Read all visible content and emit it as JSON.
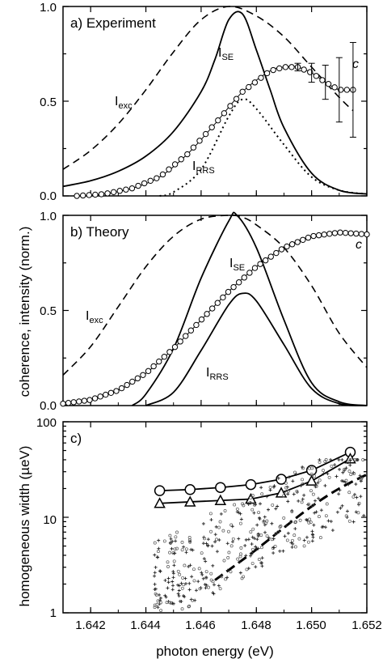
{
  "figure": {
    "ylabel_shared": "coherence,  intensity (norm.)",
    "xlabel": "photon energy (eV)"
  },
  "chart_data": [
    {
      "type": "line",
      "panel": "a) Experiment",
      "xlim": [
        1.641,
        1.652
      ],
      "ylim": [
        0,
        1.0
      ],
      "yticks": [
        "0.0",
        "0.5",
        "1.0"
      ],
      "series": [
        {
          "key": "exc",
          "label": "I",
          "sub": "exc",
          "style": "dashed",
          "x": [
            1.641,
            1.642,
            1.643,
            1.644,
            1.645,
            1.646,
            1.647,
            1.648,
            1.649,
            1.65,
            1.651,
            1.6515
          ],
          "y": [
            0.14,
            0.24,
            0.38,
            0.56,
            0.76,
            0.93,
            1.0,
            0.95,
            0.84,
            0.68,
            0.52,
            0.45
          ]
        },
        {
          "key": "se",
          "label": "I",
          "sub": "SE",
          "style": "solid",
          "x": [
            1.641,
            1.642,
            1.643,
            1.644,
            1.645,
            1.646,
            1.6465,
            1.647,
            1.6475,
            1.648,
            1.6485,
            1.649,
            1.65,
            1.651,
            1.652
          ],
          "y": [
            0.05,
            0.08,
            0.13,
            0.21,
            0.34,
            0.55,
            0.72,
            0.93,
            0.96,
            0.77,
            0.56,
            0.36,
            0.12,
            0.03,
            0.01
          ]
        },
        {
          "key": "rrs",
          "label": "I",
          "sub": "RRS",
          "style": "dotted",
          "x": [
            1.6445,
            1.645,
            1.646,
            1.647,
            1.6475,
            1.648,
            1.649,
            1.65,
            1.651,
            1.652
          ],
          "y": [
            0.0,
            0.02,
            0.14,
            0.42,
            0.51,
            0.46,
            0.27,
            0.1,
            0.03,
            0.01
          ]
        },
        {
          "key": "c",
          "label": "c",
          "style": "circles-errorbars",
          "x": [
            1.6415,
            1.6425,
            1.6435,
            1.6445,
            1.6455,
            1.6465,
            1.6475,
            1.6485,
            1.649,
            1.6495,
            1.65,
            1.6505,
            1.651,
            1.6515
          ],
          "y": [
            0.0,
            0.01,
            0.04,
            0.1,
            0.22,
            0.38,
            0.55,
            0.66,
            0.68,
            0.68,
            0.65,
            0.6,
            0.56,
            0.56
          ],
          "err": [
            0.0,
            0.0,
            0.0,
            0.0,
            0.01,
            0.01,
            0.01,
            0.01,
            0.01,
            0.02,
            0.05,
            0.09,
            0.17,
            0.25
          ]
        }
      ]
    },
    {
      "type": "line",
      "panel": "b) Theory",
      "xlim": [
        1.641,
        1.652
      ],
      "ylim": [
        0,
        1.0
      ],
      "yticks": [
        "0.0",
        "0.5",
        "1.0"
      ],
      "series": [
        {
          "key": "exc",
          "label": "I",
          "sub": "exc",
          "style": "dashed",
          "x": [
            1.641,
            1.642,
            1.643,
            1.644,
            1.645,
            1.646,
            1.647,
            1.6475,
            1.648,
            1.649,
            1.65,
            1.651,
            1.652
          ],
          "y": [
            0.16,
            0.31,
            0.52,
            0.73,
            0.89,
            0.98,
            1.0,
            0.99,
            0.95,
            0.83,
            0.63,
            0.38,
            0.2
          ]
        },
        {
          "key": "se",
          "label": "I",
          "sub": "SE",
          "style": "solid",
          "x": [
            1.6435,
            1.644,
            1.645,
            1.646,
            1.647,
            1.6473,
            1.648,
            1.649,
            1.65,
            1.651,
            1.652
          ],
          "y": [
            0.0,
            0.06,
            0.3,
            0.67,
            0.97,
            1.0,
            0.83,
            0.45,
            0.12,
            0.02,
            0.0
          ]
        },
        {
          "key": "rrs",
          "label": "I",
          "sub": "RRS",
          "style": "solid",
          "x": [
            1.644,
            1.645,
            1.646,
            1.647,
            1.6475,
            1.648,
            1.649,
            1.65,
            1.651,
            1.652
          ],
          "y": [
            0.0,
            0.07,
            0.29,
            0.53,
            0.59,
            0.55,
            0.32,
            0.09,
            0.01,
            0.0
          ]
        },
        {
          "key": "c",
          "label": "c",
          "style": "circles",
          "x": [
            1.641,
            1.642,
            1.643,
            1.644,
            1.645,
            1.646,
            1.647,
            1.648,
            1.649,
            1.65,
            1.651,
            1.652
          ],
          "y": [
            0.01,
            0.03,
            0.08,
            0.17,
            0.3,
            0.45,
            0.6,
            0.73,
            0.83,
            0.89,
            0.91,
            0.9
          ]
        }
      ]
    },
    {
      "type": "scatter",
      "panel": "c)",
      "xlim": [
        1.641,
        1.652
      ],
      "ylim": [
        1,
        100
      ],
      "yscale": "log",
      "yticks": [
        "1",
        "10",
        "100"
      ],
      "xticks": [
        "1.642",
        "1.644",
        "1.646",
        "1.648",
        "1.650",
        "1.652"
      ],
      "ylabel": "homogeneous width  (µeV)",
      "series": [
        {
          "key": "circles",
          "style": "open-circles-line",
          "x": [
            1.6445,
            1.6456,
            1.6467,
            1.6478,
            1.6489,
            1.65,
            1.6514
          ],
          "y": [
            19,
            19.5,
            20.5,
            22,
            25,
            31,
            48
          ]
        },
        {
          "key": "triangles",
          "style": "open-triangles-line",
          "x": [
            1.6445,
            1.6456,
            1.6467,
            1.6478,
            1.6489,
            1.65,
            1.6514
          ],
          "y": [
            14,
            14.5,
            15,
            15.5,
            18,
            24,
            41
          ]
        },
        {
          "key": "dashed-fit",
          "style": "thick-dashed",
          "x": [
            1.6465,
            1.647,
            1.648,
            1.649,
            1.65,
            1.651,
            1.652
          ],
          "y": [
            2.2,
            2.8,
            4.6,
            7.8,
            13,
            20,
            28
          ]
        },
        {
          "key": "scatter-cloud",
          "style": "small-crosses-and-circles",
          "x": [
            1.6445,
            1.6455,
            1.6465,
            1.6475,
            1.6485,
            1.6495,
            1.6505,
            1.6515
          ],
          "y": [
            2.5,
            3,
            4,
            5,
            8,
            12,
            18,
            24
          ]
        }
      ]
    }
  ]
}
